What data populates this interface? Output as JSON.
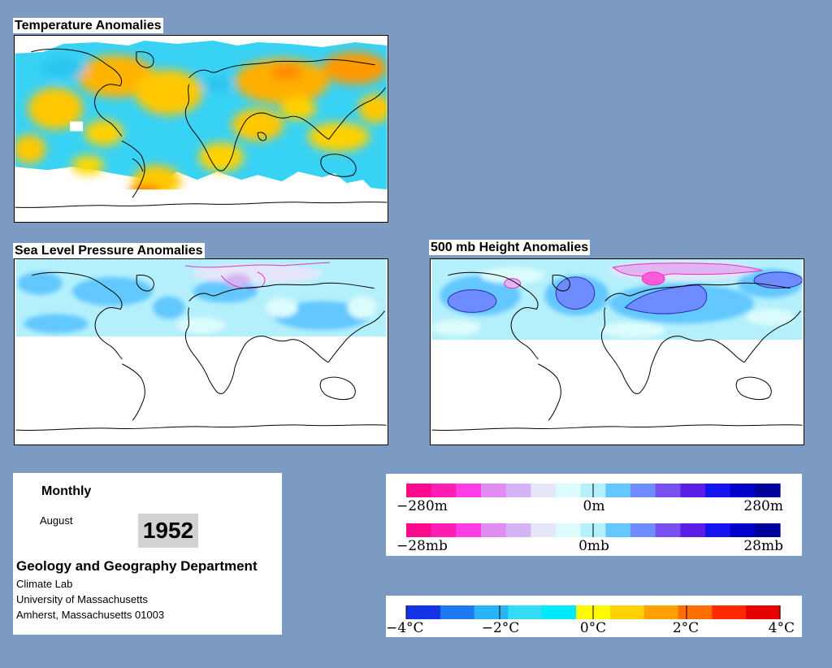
{
  "panels": {
    "temperature": {
      "title": "Temperature Anomalies"
    },
    "slp": {
      "title": "Sea Level Pressure Anomalies"
    },
    "height500": {
      "title": "500 mb Height Anomalies"
    }
  },
  "info": {
    "frequency": "Monthly",
    "month": "August",
    "year": "1952",
    "department": "Geology and Geography Department",
    "lab": "Climate Lab",
    "university": "University of Massachusetts",
    "address": "Amherst, Massachusetts 01003"
  },
  "legends": {
    "height": {
      "labels": [
        "−280m",
        "0m",
        "280m"
      ]
    },
    "pressure": {
      "labels": [
        "−28mb",
        "0mb",
        "28mb"
      ]
    },
    "temperature": {
      "labels": [
        "−4°C",
        "−2°C",
        "0°C",
        "2°C",
        "4°C"
      ]
    }
  },
  "colors": {
    "background": "#7b9bc3",
    "anomaly_scale": [
      "#ff0a8c",
      "#ff1eb4",
      "#ff3ce6",
      "#e08cf0",
      "#d4b4f4",
      "#e6e6fa",
      "#dcfcfc",
      "#b4f0fc",
      "#64c8ff",
      "#6e8cff",
      "#7850f0",
      "#5a1ee6",
      "#1414f0",
      "#0000c8",
      "#00009a"
    ],
    "temperature_scale": [
      "#1432e6",
      "#1e78f0",
      "#28b4f5",
      "#32dcf5",
      "#00eaff",
      "#fffa00",
      "#ffd200",
      "#ffa000",
      "#ff6e00",
      "#ff2800",
      "#e60000"
    ]
  }
}
